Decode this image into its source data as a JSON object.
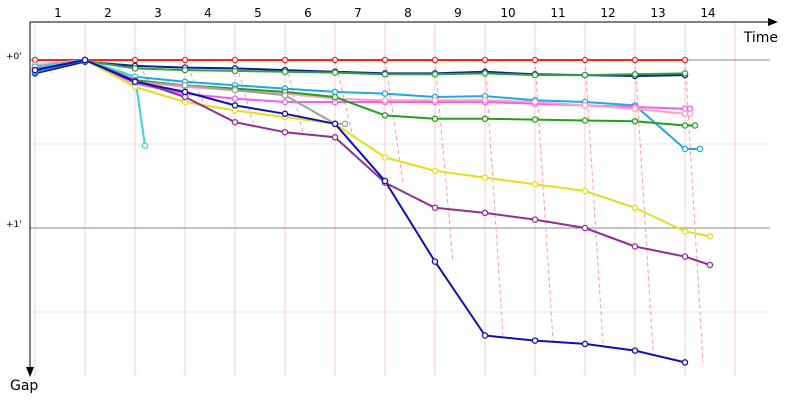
{
  "chart_data": {
    "type": "line",
    "xlabel": "Time",
    "ylabel": "Gap",
    "x_ticks": [
      "1",
      "2",
      "3",
      "4",
      "5",
      "6",
      "7",
      "8",
      "9",
      "10",
      "11",
      "12",
      "13",
      "14"
    ],
    "y_tick_labels": [
      "+0'",
      "+1'"
    ],
    "grid": true,
    "legend": "none",
    "ylim_minutes": [
      0,
      1.85
    ],
    "series": [
      {
        "color": "#ff2020",
        "values": [
          [
            1,
            0.0
          ],
          [
            2,
            0.0
          ],
          [
            3,
            0.0
          ],
          [
            4,
            0.0
          ],
          [
            5,
            0.0
          ],
          [
            6,
            0.0
          ],
          [
            7,
            0.0
          ],
          [
            8,
            0.0
          ],
          [
            9,
            0.0
          ],
          [
            10,
            0.0
          ],
          [
            11,
            0.0
          ],
          [
            12,
            0.0
          ],
          [
            13,
            0.0
          ],
          [
            14,
            0.0
          ]
        ]
      },
      {
        "color": "#101c98",
        "values": [
          [
            1,
            0.08
          ],
          [
            2,
            0.01
          ],
          [
            3,
            0.035
          ],
          [
            4,
            0.045
          ],
          [
            5,
            0.05
          ],
          [
            6,
            0.06
          ],
          [
            7,
            0.07
          ],
          [
            8,
            0.08
          ],
          [
            9,
            0.08
          ],
          [
            10,
            0.07
          ],
          [
            11,
            0.085
          ],
          [
            12,
            0.09
          ],
          [
            13,
            0.095
          ],
          [
            14,
            0.09
          ]
        ]
      },
      {
        "color": "#30a040",
        "values": [
          [
            1,
            0.05
          ],
          [
            2,
            0.005
          ],
          [
            3,
            0.05
          ],
          [
            4,
            0.06
          ],
          [
            5,
            0.065
          ],
          [
            6,
            0.07
          ],
          [
            7,
            0.075
          ],
          [
            8,
            0.085
          ],
          [
            9,
            0.085
          ],
          [
            10,
            0.08
          ],
          [
            11,
            0.09
          ],
          [
            12,
            0.09
          ],
          [
            13,
            0.085
          ],
          [
            14,
            0.08
          ]
        ]
      },
      {
        "color": "#20a8e0",
        "values": [
          [
            1,
            0.07
          ],
          [
            2,
            0.0
          ],
          [
            3,
            0.1
          ],
          [
            4,
            0.13
          ],
          [
            5,
            0.15
          ],
          [
            6,
            0.17
          ],
          [
            7,
            0.19
          ],
          [
            8,
            0.2
          ],
          [
            9,
            0.22
          ],
          [
            10,
            0.215
          ],
          [
            11,
            0.24
          ],
          [
            12,
            0.25
          ],
          [
            13,
            0.27
          ],
          [
            14,
            0.53
          ],
          [
            14.3,
            0.53
          ]
        ]
      },
      {
        "color": "#ee60ee",
        "values": [
          [
            1,
            0.05
          ],
          [
            2,
            0.0
          ],
          [
            3,
            0.14
          ],
          [
            4,
            0.2
          ],
          [
            5,
            0.23
          ],
          [
            6,
            0.25
          ],
          [
            7,
            0.25
          ],
          [
            8,
            0.25
          ],
          [
            9,
            0.25
          ],
          [
            10,
            0.25
          ],
          [
            11,
            0.26
          ],
          [
            12,
            0.27
          ],
          [
            13,
            0.28
          ],
          [
            14,
            0.29
          ],
          [
            14.1,
            0.29
          ]
        ]
      },
      {
        "color": "#ffa0c0",
        "values": [
          [
            1,
            0.03
          ],
          [
            2,
            0.0
          ],
          [
            3,
            0.13
          ],
          [
            4,
            0.16
          ],
          [
            5,
            0.18
          ],
          [
            6,
            0.2
          ],
          [
            7,
            0.23
          ],
          [
            8,
            0.24
          ],
          [
            9,
            0.24
          ],
          [
            10,
            0.24
          ],
          [
            11,
            0.25
          ],
          [
            12,
            0.27
          ],
          [
            13,
            0.29
          ],
          [
            14,
            0.32
          ],
          [
            14.1,
            0.32
          ]
        ]
      },
      {
        "color": "#20a020",
        "values": [
          [
            1,
            0.06
          ],
          [
            2,
            0.0
          ],
          [
            3,
            0.12
          ],
          [
            4,
            0.15
          ],
          [
            5,
            0.17
          ],
          [
            6,
            0.19
          ],
          [
            7,
            0.22
          ],
          [
            8,
            0.33
          ],
          [
            9,
            0.35
          ],
          [
            10,
            0.35
          ],
          [
            11,
            0.355
          ],
          [
            12,
            0.36
          ],
          [
            13,
            0.365
          ],
          [
            14,
            0.39
          ],
          [
            14.2,
            0.39
          ]
        ]
      },
      {
        "color": "#a0a0a0",
        "values": [
          [
            1,
            0.04
          ],
          [
            2,
            0.0
          ],
          [
            3,
            0.13
          ],
          [
            4,
            0.15
          ],
          [
            5,
            0.18
          ],
          [
            6,
            0.21
          ],
          [
            7,
            0.38
          ],
          [
            7.2,
            0.38
          ]
        ]
      },
      {
        "color": "#40d0d0",
        "values": [
          [
            1,
            0.04
          ],
          [
            2,
            0.0
          ],
          [
            3,
            0.1
          ],
          [
            3.2,
            0.51
          ]
        ]
      },
      {
        "color": "#e0e020",
        "values": [
          [
            1,
            0.06
          ],
          [
            2,
            0.0
          ],
          [
            3,
            0.16
          ],
          [
            4,
            0.25
          ],
          [
            5,
            0.3
          ],
          [
            6,
            0.34
          ],
          [
            7,
            0.38
          ],
          [
            8,
            0.58
          ],
          [
            9,
            0.66
          ],
          [
            10,
            0.7
          ],
          [
            11,
            0.74
          ],
          [
            12,
            0.78
          ],
          [
            13,
            0.88
          ],
          [
            14,
            1.02
          ],
          [
            14.5,
            1.05
          ]
        ]
      },
      {
        "color": "#903090",
        "values": [
          [
            1,
            0.06
          ],
          [
            2,
            0.0
          ],
          [
            3,
            0.12
          ],
          [
            4,
            0.22
          ],
          [
            5,
            0.37
          ],
          [
            6,
            0.43
          ],
          [
            7,
            0.46
          ],
          [
            8,
            0.73
          ],
          [
            9,
            0.88
          ],
          [
            10,
            0.91
          ],
          [
            11,
            0.95
          ],
          [
            12,
            1.0
          ],
          [
            13,
            1.11
          ],
          [
            14,
            1.17
          ],
          [
            14.5,
            1.22
          ]
        ]
      },
      {
        "color": "#1010b0",
        "values": [
          [
            1,
            0.06
          ],
          [
            2,
            0.0
          ],
          [
            3,
            0.13
          ],
          [
            4,
            0.19
          ],
          [
            5,
            0.27
          ],
          [
            6,
            0.32
          ],
          [
            7,
            0.38
          ],
          [
            8,
            0.72
          ],
          [
            9,
            1.2
          ],
          [
            10,
            1.64
          ],
          [
            11,
            1.67
          ],
          [
            12,
            1.69
          ],
          [
            13,
            1.73
          ],
          [
            14,
            1.8
          ]
        ]
      }
    ]
  }
}
